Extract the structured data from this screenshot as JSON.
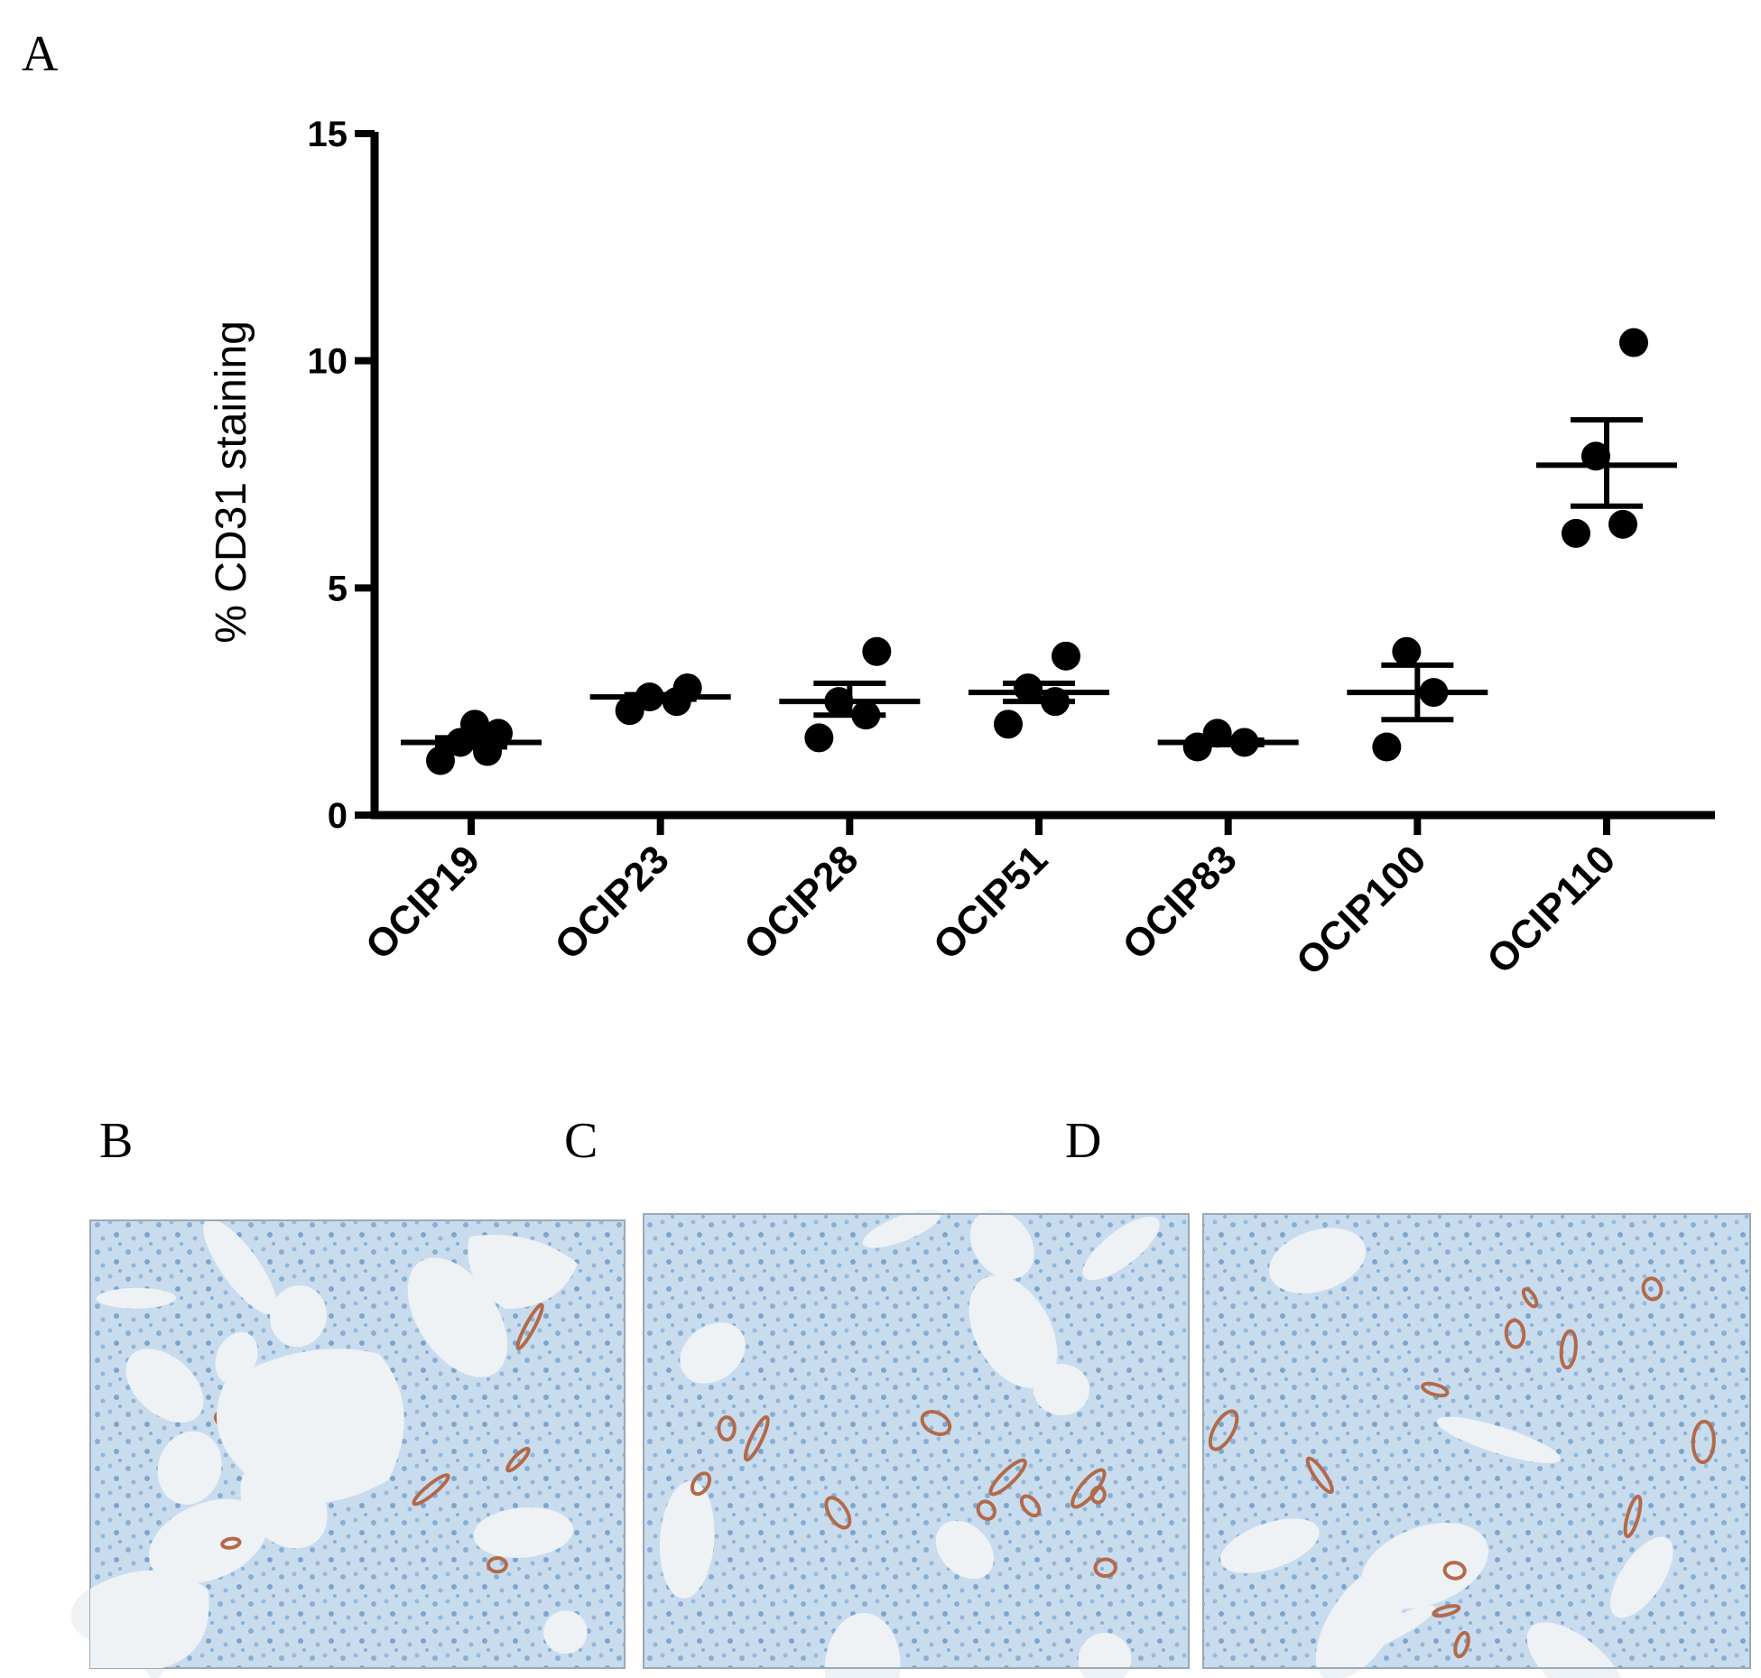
{
  "panel_labels": {
    "a": "A",
    "b": "B",
    "c": "C",
    "d": "D"
  },
  "colors": {
    "ink": "#000000",
    "tissue_bg": "#c9dcee",
    "tissue_cell": "#7da7cf",
    "lumen": "#eef2f5",
    "vessel_stain": "#b36a4a"
  },
  "chart_data": {
    "type": "scatter",
    "title": "",
    "xlabel": "",
    "ylabel": "% CD31 staining",
    "ylim": [
      0,
      15
    ],
    "yticks": [
      0,
      5,
      10,
      15
    ],
    "grid": false,
    "legend": "none",
    "categories": [
      "OCIP19",
      "OCIP23",
      "OCIP28",
      "OCIP51",
      "OCIP83",
      "OCIP100",
      "OCIP110"
    ],
    "groups": [
      {
        "category": "OCIP19",
        "points": [
          1.2,
          1.4,
          1.6,
          1.8,
          2.0
        ],
        "mean": 1.6,
        "sem_low": 1.5,
        "sem_high": 1.7
      },
      {
        "category": "OCIP23",
        "points": [
          2.3,
          2.5,
          2.6,
          2.8
        ],
        "mean": 2.6,
        "sem_low": 2.55,
        "sem_high": 2.65
      },
      {
        "category": "OCIP28",
        "points": [
          1.7,
          2.2,
          2.5,
          3.6
        ],
        "mean": 2.5,
        "sem_low": 2.2,
        "sem_high": 2.9
      },
      {
        "category": "OCIP51",
        "points": [
          2.0,
          2.5,
          2.8,
          3.5
        ],
        "mean": 2.7,
        "sem_low": 2.5,
        "sem_high": 2.9
      },
      {
        "category": "OCIP83",
        "points": [
          1.5,
          1.6,
          1.8
        ],
        "mean": 1.6,
        "sem_low": 1.55,
        "sem_high": 1.65
      },
      {
        "category": "OCIP100",
        "points": [
          1.5,
          2.7,
          3.6
        ],
        "mean": 2.7,
        "sem_low": 2.1,
        "sem_high": 3.3
      },
      {
        "category": "OCIP110",
        "points": [
          6.2,
          6.4,
          7.9,
          10.4
        ],
        "mean": 7.7,
        "sem_low": 6.8,
        "sem_high": 8.7
      }
    ]
  },
  "micrographs": [
    {
      "id": "b",
      "vessel_density": "low"
    },
    {
      "id": "c",
      "vessel_density": "medium"
    },
    {
      "id": "d",
      "vessel_density": "medium"
    }
  ]
}
